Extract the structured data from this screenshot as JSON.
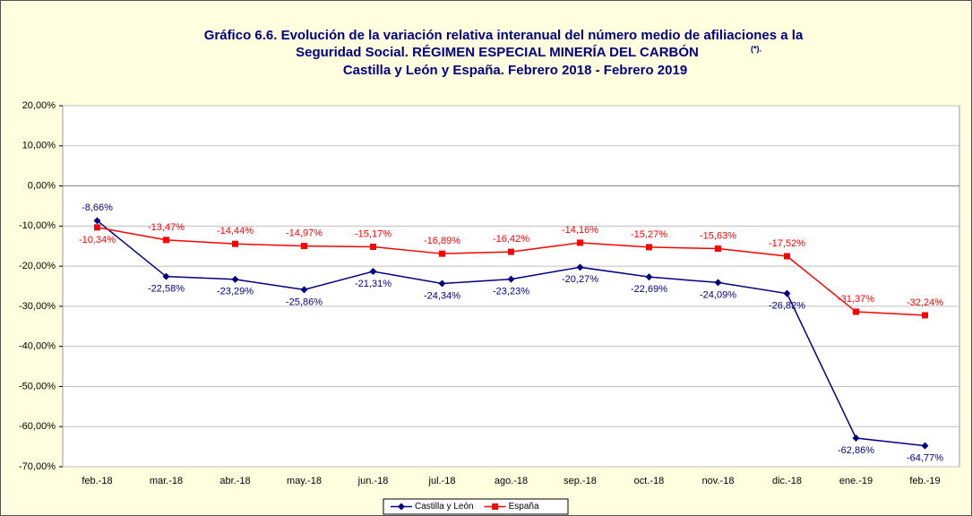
{
  "chart_data": {
    "type": "line",
    "title_lines": [
      "Gráfico 6.6. Evolución de la variación relativa interanual del número medio de  afiliaciones a la",
      "Seguridad Social. RÉGIMEN ESPECIAL MINERÍA DEL CARBÓN",
      "Castilla y León y España. Febrero 2018 - Febrero 2019"
    ],
    "title_note": "(*).",
    "categories": [
      "feb.-18",
      "mar.-18",
      "abr.-18",
      "may.-18",
      "jun.-18",
      "jul.-18",
      "ago.-18",
      "sep.-18",
      "oct.-18",
      "nov.-18",
      "dic.-18",
      "ene.-19",
      "feb.-19"
    ],
    "series": [
      {
        "name": "Castilla y León",
        "color": "#000080",
        "marker": "diamond",
        "values": [
          -8.66,
          -22.58,
          -23.29,
          -25.86,
          -21.31,
          -24.34,
          -23.23,
          -20.27,
          -22.69,
          -24.09,
          -26.82,
          -62.86,
          -64.77
        ],
        "value_labels": [
          "-8,66%",
          "-22,58%",
          "-23,29%",
          "-25,86%",
          "-21,31%",
          "-24,34%",
          "-23,23%",
          "-20,27%",
          "-22,69%",
          "-24,09%",
          "-26,82%",
          "-62,86%",
          "-64,77%"
        ]
      },
      {
        "name": "España",
        "color": "#ff0000",
        "marker": "square",
        "values": [
          -10.34,
          -13.47,
          -14.44,
          -14.97,
          -15.17,
          -16.89,
          -16.42,
          -14.16,
          -15.27,
          -15.63,
          -17.52,
          -31.37,
          -32.24
        ],
        "value_labels": [
          "-10,34%",
          "-13,47%",
          "-14,44%",
          "-14,97%",
          "-15,17%",
          "-16,89%",
          "-16,42%",
          "-14,16%",
          "-15,27%",
          "-15,63%",
          "-17,52%",
          "-31,37%",
          "-32,24%"
        ]
      }
    ],
    "ylim": [
      -70,
      20
    ],
    "yticks": [
      {
        "value": -70,
        "label": "-70,00%"
      },
      {
        "value": -60,
        "label": "-60,00%"
      },
      {
        "value": -50,
        "label": "-50,00%"
      },
      {
        "value": -40,
        "label": "-40,00%"
      },
      {
        "value": -30,
        "label": "-30,00%"
      },
      {
        "value": -20,
        "label": "-20,00%"
      },
      {
        "value": -10,
        "label": "-10,00%"
      },
      {
        "value": 0,
        "label": "0,00%"
      },
      {
        "value": 10,
        "label": "10,00%"
      },
      {
        "value": 20,
        "label": "20,00%"
      }
    ],
    "grid": true,
    "legend": "bottom"
  }
}
